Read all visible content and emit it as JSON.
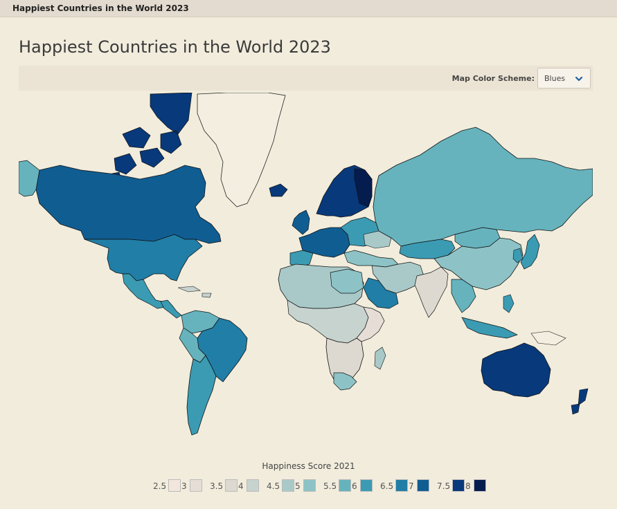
{
  "topbar": {
    "title": "Happiest Countries in the World 2023"
  },
  "page": {
    "title": "Happiest Countries in the World 2023"
  },
  "controls": {
    "scheme_label": "Map Color Scheme:",
    "scheme_value": "Blues"
  },
  "legend": {
    "title": "Happiness Score 2021",
    "items": [
      {
        "label": "2.5",
        "color": "#f3e7dd"
      },
      {
        "label": "3",
        "color": "#e6ded6"
      },
      {
        "label": "3.5",
        "color": "#ddd9d0"
      },
      {
        "label": "4",
        "color": "#c7d3cf"
      },
      {
        "label": "4.5",
        "color": "#a9c9c9"
      },
      {
        "label": "5",
        "color": "#8dc3c6"
      },
      {
        "label": "5.5",
        "color": "#66b3bd"
      },
      {
        "label": "6",
        "color": "#3b9bb3"
      },
      {
        "label": "6.5",
        "color": "#217ea6"
      },
      {
        "label": "7",
        "color": "#105d92"
      },
      {
        "label": "7.5",
        "color": "#08397b"
      },
      {
        "label": "8",
        "color": "#051c4e"
      }
    ]
  }
}
